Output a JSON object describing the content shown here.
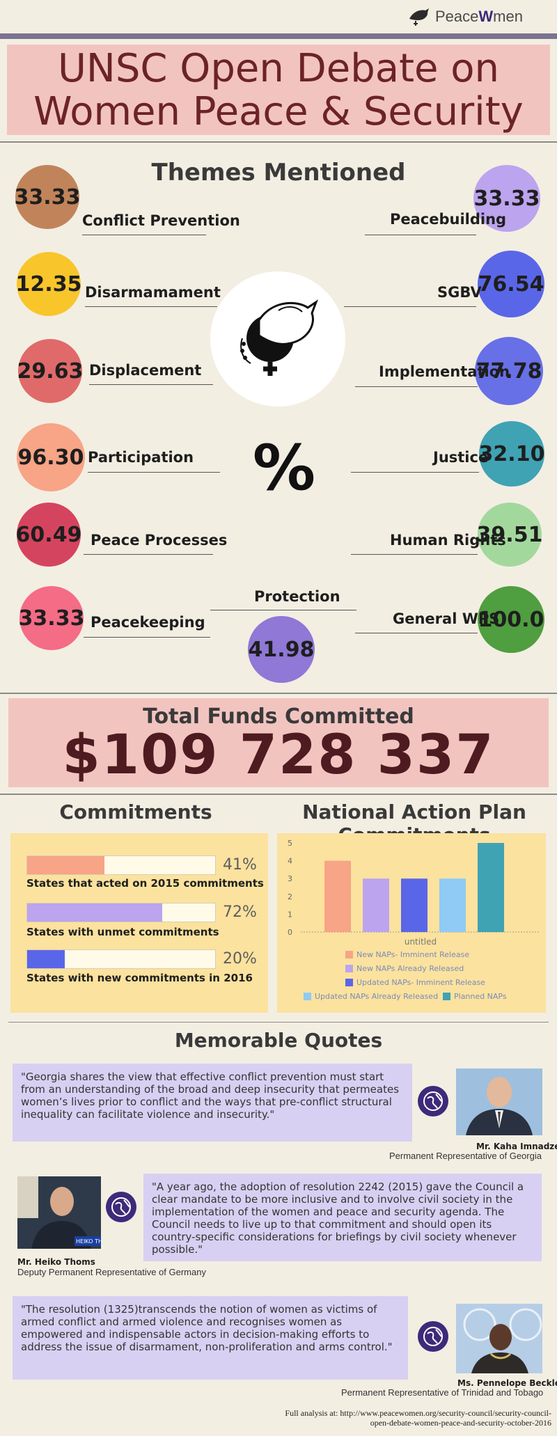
{
  "header": {
    "logo_text_a": "Peace",
    "logo_text_b": "W",
    "logo_text_c": "men",
    "title_line1": "UNSC Open Debate on",
    "title_line2": "Women Peace & Security"
  },
  "themes": {
    "heading": "Themes Mentioned",
    "percent_symbol": "%",
    "left": [
      {
        "value": "33.33",
        "label": "Conflict Prevention",
        "color": "#c1845a"
      },
      {
        "value": "12.35",
        "label": "Disarmamament",
        "color": "#f8c52b"
      },
      {
        "value": "29.63",
        "label": "Displacement",
        "color": "#e06a6a"
      },
      {
        "value": "96.30",
        "label": "Participation",
        "color": "#f7a487"
      },
      {
        "value": "60.49",
        "label": "Peace Processes",
        "color": "#d5445e"
      },
      {
        "value": "33.33",
        "label": "Peacekeeping",
        "color": "#f46c86"
      }
    ],
    "right": [
      {
        "value": "33.33",
        "label": "Peacebuilding",
        "color": "#bca4ee"
      },
      {
        "value": "76.54",
        "label": "SGBV",
        "color": "#5a66e8"
      },
      {
        "value": "77.78",
        "label": "Implementation",
        "color": "#6770e6"
      },
      {
        "value": "32.10",
        "label": "Justice",
        "color": "#3fa3b3"
      },
      {
        "value": "39.51",
        "label": "Human Rights",
        "color": "#a3d89d"
      },
      {
        "value": "100.0",
        "label": "General WPS",
        "color": "#4f9e3f"
      }
    ],
    "center": {
      "value": "41.98",
      "label": "Protection",
      "color": "#8f78d6"
    }
  },
  "funds": {
    "label": "Total Funds Committed",
    "value": "$109 728 337"
  },
  "commitments": {
    "heading": "Commitments",
    "items": [
      {
        "caption": "States that acted on 2015 commitments",
        "percent_label": "41%",
        "fraction": 0.41,
        "color": "#f7a487"
      },
      {
        "caption": "States with unmet commitments",
        "percent_label": "72%",
        "fraction": 0.72,
        "color": "#bca4ee"
      },
      {
        "caption": "States with new commitments in 2016",
        "percent_label": "20%",
        "fraction": 0.2,
        "color": "#5a66e8"
      }
    ]
  },
  "nap": {
    "heading": "National Action Plan Commitments"
  },
  "chart_data": {
    "type": "bar",
    "categories": [
      "untitled"
    ],
    "xlabel": "untitled",
    "ylim": [
      0,
      5
    ],
    "yticks": [
      "0",
      "1",
      "2",
      "3",
      "4",
      "5"
    ],
    "series": [
      {
        "name": "New NAPs- Imminent Release",
        "values": [
          4
        ],
        "color": "#f7a487"
      },
      {
        "name": "New NAPs Already Released",
        "values": [
          3
        ],
        "color": "#bca4ee"
      },
      {
        "name": "Updated NAPs- Imminent Release",
        "values": [
          3
        ],
        "color": "#5a66e8"
      },
      {
        "name": "Updated NAPs Already Released",
        "values": [
          3
        ],
        "color": "#8fcbf5"
      },
      {
        "name": "Planned NAPs",
        "values": [
          5
        ],
        "color": "#3fa3b3"
      }
    ],
    "legend": "bottom",
    "grid": false
  },
  "quotes": {
    "heading": "Memorable Quotes",
    "items": [
      {
        "text": "\"Georgia shares the view that effective conflict prevention must start from an understanding of the broad and deep insecurity that permeates women’s lives prior to conflict and the ways that pre-conflict structural inequality can facilitate violence and insecurity.\"",
        "name": "Mr. Kaha Imnadze",
        "role": "Permanent Representative of Georgia"
      },
      {
        "text": "\"A year ago, the adoption of resolution 2242 (2015) gave the Council a clear mandate to be more inclusive and to involve civil society in the implementation of the women and peace and security agenda. The Council needs to live up to that commitment and should open its country-specific considerations for briefings by civil society whenever possible.\"",
        "name": "Mr. Heiko Thoms",
        "role": "Deputy Permanent Representative of Germany"
      },
      {
        "text": "\"The resolution (1325)transcends the notion of women as victims of armed conflict and armed violence and recognises women as empowered and indispensable actors in decision-making efforts to address the issue of disarmament, non-proliferation and arms control.\"",
        "name": "Ms. Pennelope Beckles",
        "role": "Permanent Representative of Trinidad and Tobago"
      }
    ],
    "photo_sign": "HEIKO THO"
  },
  "footer": {
    "line1": "Full analysis at: http://www.peacewomen.org/security-council/security-council-",
    "line2": "open-debate-women-peace-and-security-october-2016"
  }
}
